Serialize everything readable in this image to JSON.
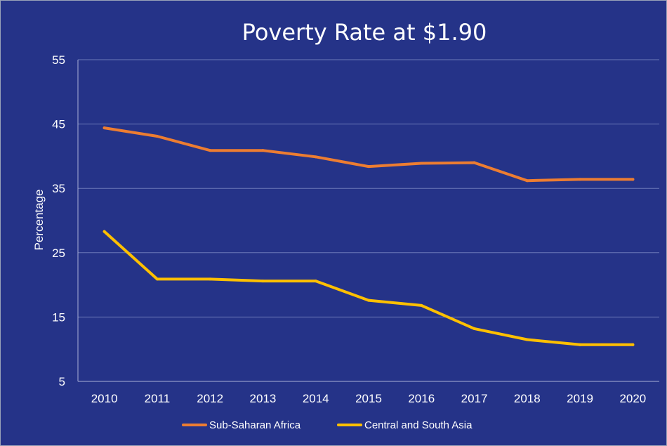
{
  "chart_data": {
    "type": "line",
    "title": "Poverty Rate at $1.90",
    "xlabel": "",
    "ylabel": "Percentage",
    "categories": [
      "2010",
      "2011",
      "2012",
      "2013",
      "2014",
      "2015",
      "2016",
      "2017",
      "2018",
      "2019",
      "2020"
    ],
    "yticks": [
      5,
      15,
      25,
      35,
      45,
      55
    ],
    "ylim": [
      5,
      55
    ],
    "grid": true,
    "legend_position": "bottom",
    "series": [
      {
        "name": "Sub-Saharan Africa",
        "color": "#ed7d31",
        "values": [
          44.4,
          43.1,
          40.9,
          40.9,
          39.9,
          38.4,
          38.9,
          39.0,
          36.2,
          36.4,
          36.4
        ]
      },
      {
        "name": "Central and South Asia",
        "color": "#ffc000",
        "values": [
          28.3,
          20.9,
          20.9,
          20.6,
          20.6,
          17.6,
          16.8,
          13.2,
          11.5,
          10.7,
          10.7
        ]
      }
    ]
  },
  "colors": {
    "background": "#253388",
    "text": "#ffffff",
    "grid": "#6b78b8"
  }
}
